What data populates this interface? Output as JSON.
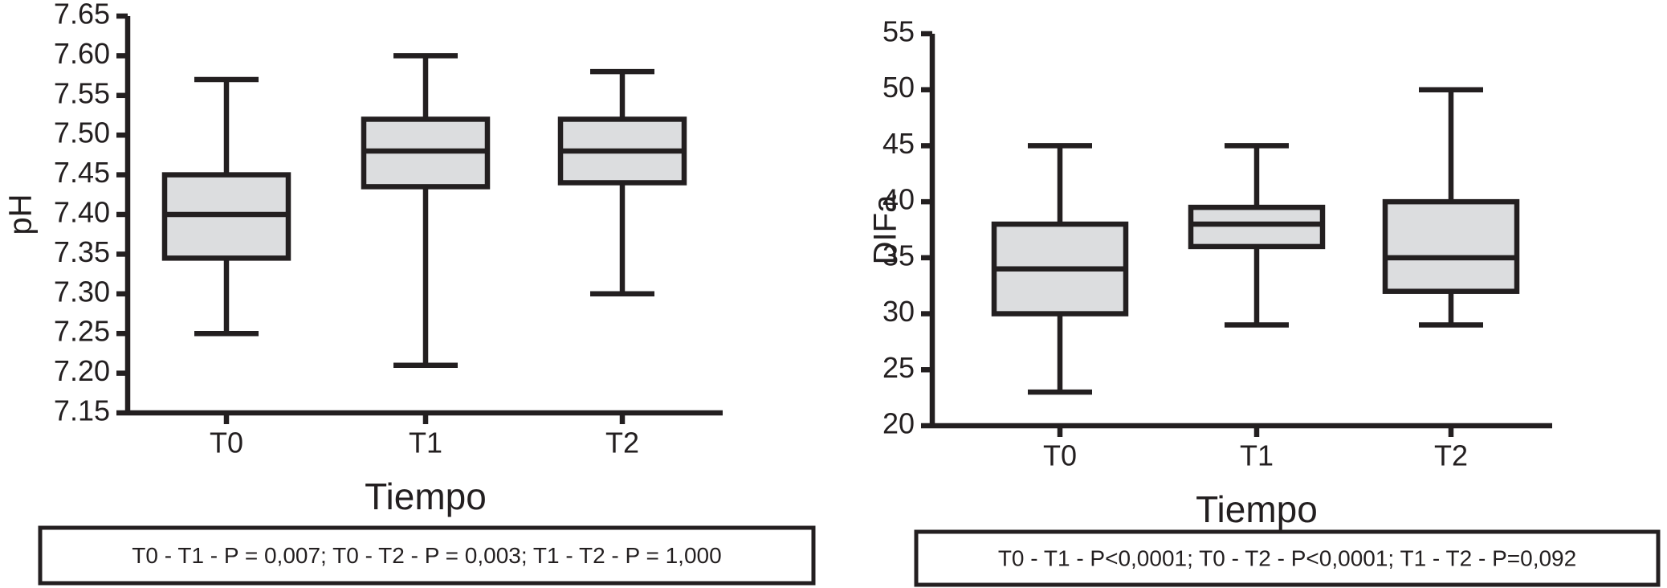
{
  "chart_data": [
    {
      "type": "box",
      "y_label": "pH",
      "x_label": "Tiempo",
      "categories": [
        "T0",
        "T1",
        "T2"
      ],
      "boxes": [
        {
          "min": 7.25,
          "q1": 7.345,
          "median": 7.4,
          "q3": 7.45,
          "max": 7.57
        },
        {
          "min": 7.21,
          "q1": 7.435,
          "median": 7.48,
          "q3": 7.52,
          "max": 7.6
        },
        {
          "min": 7.3,
          "q1": 7.44,
          "median": 7.48,
          "q3": 7.52,
          "max": 7.58
        }
      ],
      "color": "#dcdddf",
      "ylim": [
        7.15,
        7.65
      ],
      "yticks": [
        7.15,
        {
          "value": 7.2,
          "label": "7.20"
        },
        7.25,
        {
          "value": 7.3,
          "label": "7.30"
        },
        7.35,
        {
          "value": 7.4,
          "label": "7.40"
        },
        7.45,
        {
          "value": 7.5,
          "label": "7.50"
        },
        7.55,
        {
          "value": 7.6,
          "label": "7.60"
        },
        7.65
      ],
      "note": "T0 - T1 - P = 0,007; T0 - T2 - P = 0,003; T1 - T2 - P = 1,000"
    },
    {
      "type": "box",
      "y_label": "DIFa",
      "x_label": "Tiempo",
      "categories": [
        "T0",
        "T1",
        "T2"
      ],
      "boxes": [
        {
          "min": 23,
          "q1": 30,
          "median": 34,
          "q3": 38,
          "max": 45
        },
        {
          "min": 29,
          "q1": 36,
          "median": 38,
          "q3": 39.5,
          "max": 45
        },
        {
          "min": 29,
          "q1": 32,
          "median": 35,
          "q3": 40,
          "max": 50
        }
      ],
      "color": "#dcdddf",
      "ylim": [
        20,
        55
      ],
      "yticks": [
        20,
        25,
        30,
        35,
        40,
        45,
        50,
        55
      ],
      "note": "T0 - T1 - P<0,0001; T0 - T2 - P<0,0001; T1 - T2 - P=0,092"
    }
  ]
}
